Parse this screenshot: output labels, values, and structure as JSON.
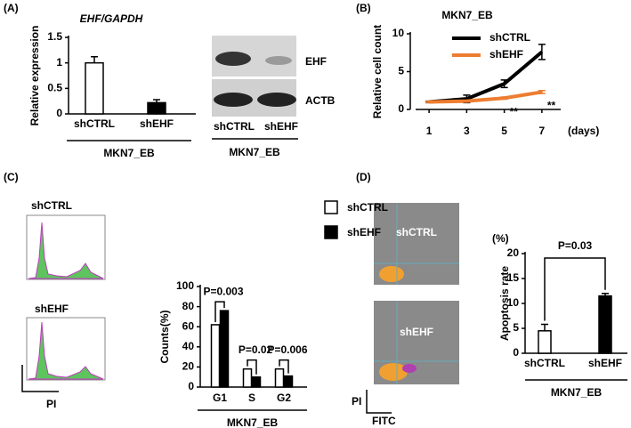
{
  "panels": [
    "(A)",
    "(B)",
    "(C)",
    "(D)"
  ],
  "blot": {
    "bands": [
      "EHF",
      "ACTB"
    ],
    "lanes": [
      "shCTRL",
      "shEHF"
    ],
    "group": "MKN7_EB"
  },
  "cell_cycle_images": {
    "labels": [
      "shCTRL",
      "shEHF"
    ],
    "axis": "PI"
  },
  "flow_images": {
    "labels": [
      "shCTRL",
      "shEHF"
    ],
    "y_axis": "PI",
    "x_axis": "FITC"
  },
  "chart_data": [
    {
      "type": "bar",
      "title": "EHF/GAPDH",
      "y_label": "Relative expression",
      "group": "MKN7_EB",
      "categories": [
        "shCTRL",
        "shEHF"
      ],
      "values": [
        1.0,
        0.22
      ],
      "errors": [
        0.12,
        0.06
      ],
      "colors": [
        "#ffffff",
        "#000000"
      ],
      "ylim": [
        0,
        1.5
      ],
      "yticks": [
        0,
        0.5,
        1,
        1.5
      ]
    },
    {
      "type": "line",
      "title": "MKN7_EB",
      "y_label": "Relative cell count",
      "x_label": "(days)",
      "x": [
        1,
        3,
        5,
        7
      ],
      "xlim": [
        0,
        8
      ],
      "xticks": [
        1,
        3,
        5,
        7
      ],
      "ylim": [
        0,
        10
      ],
      "yticks": [
        0,
        5,
        10
      ],
      "series": [
        {
          "name": "shCTRL",
          "color": "#000000",
          "values": [
            1,
            1.4,
            3.4,
            7.6
          ],
          "errors": [
            0.1,
            0.5,
            0.5,
            1.0
          ]
        },
        {
          "name": "shEHF",
          "color": "#ed7d31",
          "values": [
            1,
            1.1,
            1.5,
            2.3
          ],
          "errors": [
            0.1,
            0.1,
            0.15,
            0.2
          ]
        }
      ],
      "annotations": [
        "**",
        "**"
      ]
    },
    {
      "type": "grouped-bar",
      "y_label": "Counts(%)",
      "group": "MKN7_EB",
      "categories": [
        "G1",
        "S",
        "G2"
      ],
      "ylim": [
        0,
        100
      ],
      "yticks": [
        0,
        20,
        40,
        60,
        80,
        100
      ],
      "series": [
        {
          "name": "shCTRL",
          "color": "#ffffff",
          "values": [
            62,
            18,
            18
          ]
        },
        {
          "name": "shEHF",
          "color": "#000000",
          "values": [
            76,
            10,
            11
          ]
        }
      ],
      "annotations": [
        "P=0.003",
        "P=0.02",
        "P=0.006"
      ]
    },
    {
      "type": "bar",
      "y_label": "Apoptosis rate",
      "unit": "(%)",
      "group": "MKN7_EB",
      "categories": [
        "shCTRL",
        "shEHF"
      ],
      "values": [
        4.5,
        11.5
      ],
      "errors": [
        1.3,
        0.5
      ],
      "colors": [
        "#ffffff",
        "#000000"
      ],
      "ylim": [
        0,
        20
      ],
      "yticks": [
        0,
        5,
        10,
        15,
        20
      ],
      "annotation": "P=0.03"
    }
  ]
}
